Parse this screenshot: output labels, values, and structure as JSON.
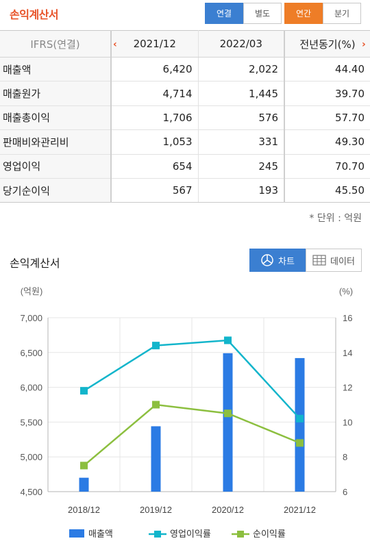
{
  "header": {
    "title": "손익계산서",
    "seg1": [
      "연결",
      "별도"
    ],
    "seg2": [
      "연간",
      "분기"
    ]
  },
  "table": {
    "columns": [
      "IFRS(연결)",
      "2021/12",
      "2022/03",
      "전년동기(%)"
    ],
    "rows": [
      {
        "label": "매출액",
        "values": [
          "6,420",
          "2,022",
          "44.40"
        ]
      },
      {
        "label": "매출원가",
        "values": [
          "4,714",
          "1,445",
          "39.70"
        ]
      },
      {
        "label": "매출총이익",
        "values": [
          "1,706",
          "576",
          "57.70"
        ]
      },
      {
        "label": "판매비와관리비",
        "values": [
          "1,053",
          "331",
          "49.30"
        ]
      },
      {
        "label": "영업이익",
        "values": [
          "654",
          "245",
          "70.70"
        ]
      },
      {
        "label": "당기순이익",
        "values": [
          "567",
          "193",
          "45.50"
        ]
      }
    ],
    "unit_note": "* 단위 : 억원"
  },
  "chart_section": {
    "title": "손익계산서",
    "chart_btn": "차트",
    "data_btn": "데이터"
  },
  "colors": {
    "bar": "#2b7be4",
    "op_margin": "#12b5cb",
    "net_margin": "#8cbf3f",
    "accent_orange": "#ee7d27",
    "accent_blue": "#3b7fd1"
  },
  "chart_data": {
    "type": "bar",
    "categories": [
      "2018/12",
      "2019/12",
      "2020/12",
      "2021/12"
    ],
    "y_left": {
      "unit_label": "(억원)",
      "range": [
        4500,
        7000
      ],
      "ticks": [
        "4,500",
        "5,000",
        "5,500",
        "6,000",
        "6,500",
        "7,000"
      ]
    },
    "y_right": {
      "unit_label": "(%)",
      "range": [
        6,
        16
      ],
      "ticks": [
        "6",
        "8",
        "10",
        "12",
        "14",
        "16"
      ]
    },
    "series": [
      {
        "name": "매출액",
        "type": "bar",
        "axis": "left",
        "values": [
          4700,
          5440,
          6490,
          6420
        ]
      },
      {
        "name": "영업이익률",
        "type": "line",
        "axis": "right",
        "values": [
          11.8,
          14.4,
          14.7,
          10.2
        ]
      },
      {
        "name": "순이익률",
        "type": "line",
        "axis": "right",
        "values": [
          7.5,
          11.0,
          10.5,
          8.8
        ]
      }
    ],
    "grid": true,
    "legend": "bottom"
  }
}
